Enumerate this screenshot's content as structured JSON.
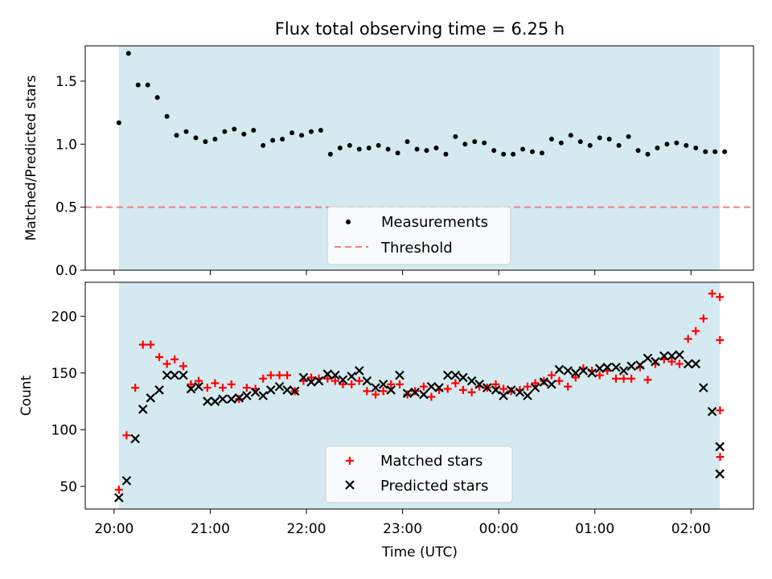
{
  "chart_data": [
    {
      "type": "scatter",
      "title": "Flux total observing time = 6.25 h",
      "xlabel": "",
      "ylabel": "Matched/Predicted stars",
      "ylim": [
        0,
        1.78
      ],
      "yticks": [
        "0.0",
        "0.5",
        "1.0",
        "1.5"
      ],
      "yticks_values": [
        0,
        0.5,
        1.0,
        1.5
      ],
      "xlim": [
        -0.3,
        6.65
      ],
      "shaded_range": [
        0.05,
        6.3
      ],
      "shade_color": "#d4eaf0",
      "threshold": 0.5,
      "threshold_color": "#f08080",
      "legend": {
        "position": "bottom-center",
        "entries": [
          "Measurements",
          "Threshold"
        ]
      },
      "series": [
        {
          "name": "Measurements",
          "marker": "dot",
          "color": "#000000",
          "x": [
            0.05,
            0.15,
            0.25,
            0.35,
            0.45,
            0.55,
            0.65,
            0.75,
            0.85,
            0.95,
            1.05,
            1.15,
            1.25,
            1.35,
            1.45,
            1.55,
            1.65,
            1.75,
            1.85,
            1.95,
            2.05,
            2.15,
            2.25,
            2.35,
            2.45,
            2.55,
            2.65,
            2.75,
            2.85,
            2.95,
            3.05,
            3.15,
            3.25,
            3.35,
            3.45,
            3.55,
            3.65,
            3.75,
            3.85,
            3.95,
            4.05,
            4.15,
            4.25,
            4.35,
            4.45,
            4.55,
            4.65,
            4.75,
            4.85,
            4.95,
            5.05,
            5.15,
            5.25,
            5.35,
            5.45,
            5.55,
            5.65,
            5.75,
            5.85,
            5.95,
            6.05,
            6.15,
            6.25,
            6.35
          ],
          "values": [
            1.17,
            1.72,
            1.47,
            1.47,
            1.37,
            1.22,
            1.07,
            1.1,
            1.05,
            1.02,
            1.04,
            1.1,
            1.12,
            1.08,
            1.11,
            0.99,
            1.03,
            1.04,
            1.09,
            1.07,
            1.1,
            1.11,
            0.92,
            0.97,
            0.99,
            0.96,
            0.97,
            0.99,
            0.96,
            0.93,
            1.02,
            0.96,
            0.95,
            0.97,
            0.92,
            1.06,
            1.0,
            1.02,
            1.01,
            0.95,
            0.92,
            0.92,
            0.96,
            0.94,
            0.93,
            1.04,
            1.01,
            1.07,
            1.02,
            0.99,
            1.05,
            1.04,
            0.99,
            1.06,
            0.95,
            0.92,
            0.97,
            1.0,
            1.01,
            0.99,
            0.97,
            0.94,
            0.94,
            0.94
          ]
        }
      ]
    },
    {
      "type": "scatter",
      "title": "",
      "xlabel": "Time (UTC)",
      "ylabel": "Count",
      "ylim": [
        30,
        230
      ],
      "yticks": [
        "50",
        "100",
        "150",
        "200"
      ],
      "yticks_values": [
        50,
        100,
        150,
        200
      ],
      "xlim": [
        -0.3,
        6.65
      ],
      "xticks": [
        "20:00",
        "21:00",
        "22:00",
        "23:00",
        "00:00",
        "01:00",
        "02:00"
      ],
      "xticks_values": [
        0,
        1,
        2,
        3,
        4,
        5,
        6
      ],
      "shaded_range": [
        0.05,
        6.3
      ],
      "shade_color": "#d4eaf0",
      "legend": {
        "position": "bottom-center",
        "entries": [
          "Matched stars",
          "Predicted stars"
        ]
      },
      "series": [
        {
          "name": "Matched stars",
          "marker": "plus",
          "color": "#ff0000",
          "x": [
            0.05,
            0.13,
            0.22,
            0.3,
            0.38,
            0.47,
            0.55,
            0.63,
            0.72,
            0.8,
            0.88,
            0.97,
            1.05,
            1.13,
            1.22,
            1.3,
            1.38,
            1.47,
            1.55,
            1.63,
            1.72,
            1.8,
            1.88,
            1.97,
            2.05,
            2.13,
            2.22,
            2.3,
            2.38,
            2.47,
            2.55,
            2.63,
            2.72,
            2.8,
            2.88,
            2.97,
            3.05,
            3.13,
            3.22,
            3.3,
            3.38,
            3.47,
            3.55,
            3.63,
            3.72,
            3.8,
            3.88,
            3.97,
            4.05,
            4.13,
            4.22,
            4.3,
            4.38,
            4.47,
            4.55,
            4.63,
            4.72,
            4.8,
            4.88,
            4.97,
            5.05,
            5.13,
            5.22,
            5.3,
            5.38,
            5.47,
            5.55,
            5.63,
            5.72,
            5.8,
            5.88,
            5.97,
            6.05,
            6.13,
            6.22,
            6.3
          ],
          "values": [
            47,
            95,
            137,
            175,
            175,
            164,
            158,
            162,
            156,
            140,
            143,
            137,
            141,
            137,
            140,
            127,
            137,
            136,
            145,
            148,
            148,
            148,
            134,
            143,
            146,
            145,
            145,
            143,
            140,
            140,
            143,
            134,
            131,
            134,
            140,
            140,
            131,
            134,
            138,
            129,
            135,
            136,
            141,
            135,
            133,
            138,
            137,
            140,
            136,
            134,
            135,
            138,
            141,
            143,
            148,
            143,
            138,
            146,
            154,
            152,
            148,
            152,
            145,
            145,
            145,
            155,
            144,
            158,
            162,
            160,
            158,
            180,
            187,
            198,
            220,
            217
          ],
          "extra_tail": [
            179,
            117,
            76
          ]
        },
        {
          "name": "Predicted stars",
          "marker": "x",
          "color": "#000000",
          "x": [
            0.05,
            0.13,
            0.22,
            0.3,
            0.38,
            0.47,
            0.55,
            0.63,
            0.72,
            0.8,
            0.88,
            0.97,
            1.05,
            1.13,
            1.22,
            1.3,
            1.38,
            1.47,
            1.55,
            1.63,
            1.72,
            1.8,
            1.88,
            1.97,
            2.05,
            2.13,
            2.22,
            2.3,
            2.38,
            2.47,
            2.55,
            2.63,
            2.72,
            2.8,
            2.88,
            2.97,
            3.05,
            3.13,
            3.22,
            3.3,
            3.38,
            3.47,
            3.55,
            3.63,
            3.72,
            3.8,
            3.88,
            3.97,
            4.05,
            4.13,
            4.22,
            4.3,
            4.38,
            4.47,
            4.55,
            4.63,
            4.72,
            4.8,
            4.88,
            4.97,
            5.05,
            5.13,
            5.22,
            5.3,
            5.38,
            5.47,
            5.55,
            5.63,
            5.72,
            5.8,
            5.88,
            5.97,
            6.05,
            6.13,
            6.22,
            6.3
          ],
          "values": [
            40,
            55,
            92,
            118,
            128,
            135,
            148,
            148,
            148,
            136,
            138,
            125,
            125,
            127,
            127,
            128,
            130,
            133,
            130,
            135,
            138,
            135,
            134,
            146,
            142,
            143,
            149,
            148,
            144,
            147,
            152,
            143,
            137,
            140,
            135,
            148,
            132,
            133,
            131,
            138,
            137,
            148,
            148,
            146,
            143,
            140,
            137,
            135,
            130,
            135,
            133,
            130,
            137,
            142,
            140,
            153,
            152,
            150,
            152,
            150,
            154,
            155,
            155,
            152,
            156,
            157,
            163,
            160,
            165,
            165,
            166,
            158,
            158,
            137,
            116,
            85
          ],
          "extra_tail": [
            61
          ]
        }
      ]
    }
  ]
}
